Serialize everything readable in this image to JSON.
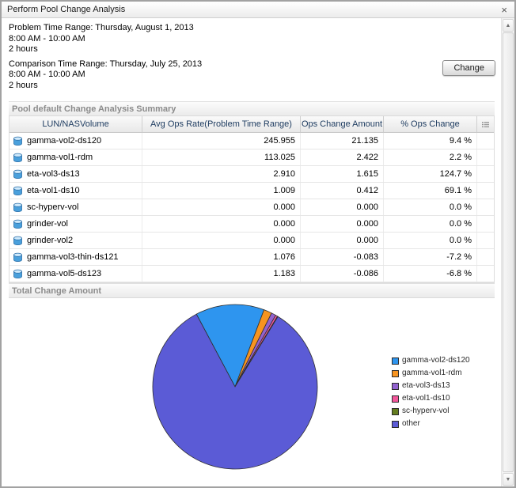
{
  "window": {
    "title": "Perform Pool Change Analysis",
    "close_label": "×"
  },
  "icons": {
    "scroll_up": "▲",
    "scroll_down": "▼"
  },
  "info": {
    "problem": {
      "range": "Problem Time Range: Thursday, August 1, 2013",
      "time": "8:00 AM - 10:00 AM",
      "duration": "2 hours"
    },
    "comparison": {
      "range": "Comparison Time Range: Thursday, July 25, 2013",
      "time": "8:00 AM - 10:00 AM",
      "duration": "2 hours"
    },
    "change_button": "Change"
  },
  "summary": {
    "section_title": "Pool default Change Analysis Summary",
    "columns": [
      "LUN/NASVolume",
      "Avg Ops Rate(Problem Time Range)",
      "Ops Change Amount",
      "% Ops Change"
    ],
    "rows": [
      {
        "name": "gamma-vol2-ds120",
        "avg": "245.955",
        "change": "21.135",
        "pct": "9.4 %"
      },
      {
        "name": "gamma-vol1-rdm",
        "avg": "113.025",
        "change": "2.422",
        "pct": "2.2 %"
      },
      {
        "name": "eta-vol3-ds13",
        "avg": "2.910",
        "change": "1.615",
        "pct": "124.7 %"
      },
      {
        "name": "eta-vol1-ds10",
        "avg": "1.009",
        "change": "0.412",
        "pct": "69.1 %"
      },
      {
        "name": "sc-hyperv-vol",
        "avg": "0.000",
        "change": "0.000",
        "pct": "0.0 %"
      },
      {
        "name": "grinder-vol",
        "avg": "0.000",
        "change": "0.000",
        "pct": "0.0 %"
      },
      {
        "name": "grinder-vol2",
        "avg": "0.000",
        "change": "0.000",
        "pct": "0.0 %"
      },
      {
        "name": "gamma-vol3-thin-ds121",
        "avg": "1.076",
        "change": "-0.083",
        "pct": "-7.2 %"
      },
      {
        "name": "gamma-vol5-ds123",
        "avg": "1.183",
        "change": "-0.086",
        "pct": "-6.8 %"
      }
    ]
  },
  "chart_section": {
    "title": "Total Change Amount"
  },
  "chart_data": {
    "type": "pie",
    "title": "Total Change Amount",
    "labels": [
      "gamma-vol2-ds120",
      "gamma-vol1-rdm",
      "eta-vol3-ds13",
      "eta-vol1-ds10",
      "sc-hyperv-vol",
      "other"
    ],
    "values": [
      13.5,
      1.6,
      0.9,
      0.4,
      0.1,
      83.5
    ],
    "units": "% of total (estimated from pie geometry; no numeric labels shown in chart)",
    "colors": [
      "#2e95ef",
      "#f79420",
      "#9262cf",
      "#f2579b",
      "#647d1f",
      "#5b5bd6"
    ],
    "start_angle_deg": 118,
    "direction": "clockwise",
    "legend_position": "right"
  }
}
